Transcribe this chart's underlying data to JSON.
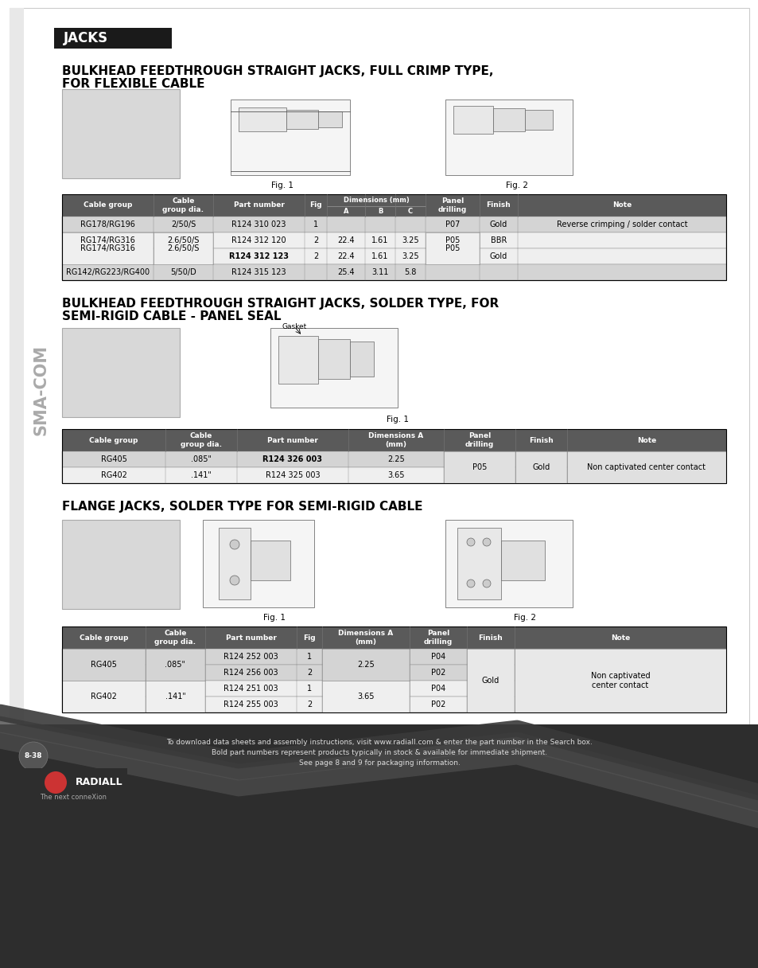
{
  "page_bg": "#ffffff",
  "header_bg": "#1a1a1a",
  "header_text": "JACKS",
  "header_text_color": "#ffffff",
  "section1_title_line1": "BULKHEAD FEEDTHROUGH STRAIGHT JACKS, FULL CRIMP TYPE,",
  "section1_title_line2": "FOR FLEXIBLE CABLE",
  "section2_title_line1": "BULKHEAD FEEDTHROUGH STRAIGHT JACKS, SOLDER TYPE, FOR",
  "section2_title_line2": "SEMI-RIGID CABLE - PANEL SEAL",
  "section3_title": "FLANGE JACKS, SOLDER TYPE FOR SEMI-RIGID CABLE",
  "table_header_bg": "#5a5a5a",
  "table_header_color": "#ffffff",
  "row_bg_dark": "#d4d4d4",
  "row_bg_light": "#efefef",
  "table_border": "#888888",
  "t1_col_widths": [
    115,
    75,
    115,
    28,
    48,
    38,
    38,
    68,
    48,
    262
  ],
  "t1_headers": [
    "Cable group",
    "Cable\ngroup dia.",
    "Part number",
    "Fig",
    "Dimensions (mm)",
    "A",
    "B",
    "C",
    "Panel\ndrilling",
    "Finish",
    "Note"
  ],
  "t2_col_widths": [
    130,
    90,
    140,
    120,
    90,
    65,
    200
  ],
  "t2_headers": [
    "Cable group",
    "Cable\ngroup dia.",
    "Part number",
    "Dimensions A\n(mm)",
    "Panel\ndrilling",
    "Finish",
    "Note"
  ],
  "t3_col_widths": [
    105,
    75,
    115,
    32,
    110,
    72,
    60,
    266
  ],
  "t3_headers": [
    "Cable group",
    "Cable\ngroup dia.",
    "Part number",
    "Fig",
    "Dimensions A\n(mm)",
    "Panel\ndrilling",
    "Finish",
    "Note"
  ],
  "footer_line1": "To download data sheets and assembly instructions, visit www.radiall.com & enter the part number in the Search box.",
  "footer_line1_bold": "www.radiall.com",
  "footer_line2": "Bold part numbers represent products typically in stock & available for immediate shipment.",
  "footer_line3": "See page 8 and 9 for packaging information.",
  "page_num": "8-38",
  "sma_com": "SMA-COM",
  "fig1": "Fig. 1",
  "fig2": "Fig. 2",
  "footer_bg": "#333333",
  "wave_bg": "#3a3a3a"
}
